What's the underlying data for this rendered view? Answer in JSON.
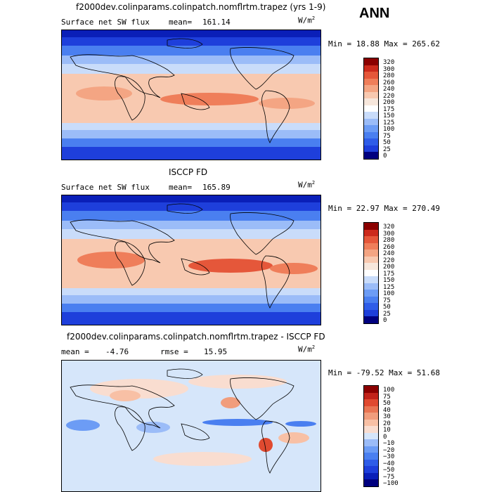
{
  "season": "ANN",
  "panels": [
    {
      "title": "f2000dev.colinparams.colinpatch.nomflrtm.trapez (yrs 1-9)",
      "variable": "Surface net SW flux",
      "stat_left": "mean=",
      "stat_left_value": "161.14",
      "stat_right": "",
      "stat_right_value": "",
      "units": "W/m",
      "units_exp": "2",
      "minmax": "Min =  18.88 Max = 265.62",
      "colorbar_labels": [
        "320",
        "300",
        "280",
        "260",
        "240",
        "220",
        "200",
        "175",
        "150",
        "125",
        "100",
        "75",
        "50",
        "25",
        "0"
      ]
    },
    {
      "title": "ISCCP FD",
      "variable": "Surface net SW flux",
      "stat_left": "mean=",
      "stat_left_value": "165.89",
      "stat_right": "",
      "stat_right_value": "",
      "units": "W/m",
      "units_exp": "2",
      "minmax": "Min =  22.97 Max = 270.49",
      "colorbar_labels": [
        "320",
        "300",
        "280",
        "260",
        "240",
        "220",
        "200",
        "175",
        "150",
        "125",
        "100",
        "75",
        "50",
        "25",
        "0"
      ]
    },
    {
      "title": "f2000dev.colinparams.colinpatch.nomflrtm.trapez - ISCCP FD",
      "variable": "",
      "stat_left": "mean =",
      "stat_left_value": "-4.76",
      "stat_right": "rmse =",
      "stat_right_value": "15.95",
      "units": "W/m",
      "units_exp": "2",
      "minmax": "Min = -79.52 Max =  51.68",
      "colorbar_labels": [
        "100",
        "75",
        "50",
        "40",
        "30",
        "20",
        "10",
        "0",
        "−10",
        "−20",
        "−30",
        "−40",
        "−50",
        "−75",
        "−100"
      ]
    }
  ],
  "chart_data": [
    {
      "type": "heatmap",
      "title": "f2000dev.colinparams.colinpatch.nomflrtm.trapez (yrs 1-9)",
      "subtitle": "Surface net SW flux",
      "units": "W/m2",
      "mean": 161.14,
      "min": 18.88,
      "max": 265.62,
      "levels": [
        0,
        25,
        50,
        75,
        100,
        125,
        150,
        175,
        200,
        220,
        240,
        260,
        280,
        300,
        320
      ],
      "colors": [
        "#00007f",
        "#0a1fb8",
        "#1e3fdb",
        "#2f5de8",
        "#4a7ff0",
        "#6c9cf5",
        "#9bbcf8",
        "#c9dcfa",
        "#f7e7dc",
        "#f8c9b0",
        "#f4a583",
        "#ef7e5a",
        "#e5573a",
        "#cc2a1c",
        "#8b0000"
      ]
    },
    {
      "type": "heatmap",
      "title": "ISCCP FD",
      "subtitle": "Surface net SW flux",
      "units": "W/m2",
      "mean": 165.89,
      "min": 22.97,
      "max": 270.49,
      "levels": [
        0,
        25,
        50,
        75,
        100,
        125,
        150,
        175,
        200,
        220,
        240,
        260,
        280,
        300,
        320
      ],
      "colors": [
        "#00007f",
        "#0a1fb8",
        "#1e3fdb",
        "#2f5de8",
        "#4a7ff0",
        "#6c9cf5",
        "#9bbcf8",
        "#c9dcfa",
        "#f7e7dc",
        "#f8c9b0",
        "#f4a583",
        "#ef7e5a",
        "#e5573a",
        "#cc2a1c",
        "#8b0000"
      ]
    },
    {
      "type": "heatmap",
      "title": "f2000dev.colinparams.colinpatch.nomflrtm.trapez - ISCCP FD",
      "units": "W/m2",
      "mean": -4.76,
      "rmse": 15.95,
      "min": -79.52,
      "max": 51.68,
      "levels": [
        -100,
        -75,
        -50,
        -40,
        -30,
        -20,
        -10,
        0,
        10,
        20,
        30,
        40,
        50,
        75,
        100
      ],
      "colors": [
        "#00007f",
        "#0a1fb8",
        "#1e3fdb",
        "#2f5de8",
        "#4a7ff0",
        "#6c9cf5",
        "#9bbcf8",
        "#d6e6fa",
        "#f9ddd0",
        "#f8c0a5",
        "#f19d7c",
        "#e97553",
        "#e04a30",
        "#c2231a",
        "#8b0000"
      ]
    }
  ]
}
